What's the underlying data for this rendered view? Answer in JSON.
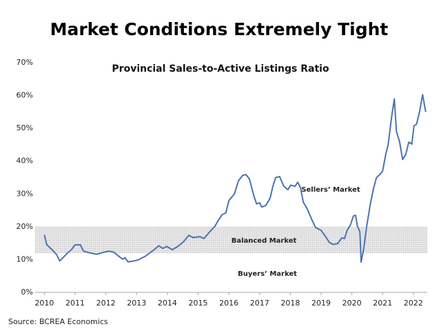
{
  "chart_data": {
    "type": "line",
    "title": "Market Conditions Extremely Tight",
    "subtitle": "Provincial Sales-to-Active Listings Ratio",
    "source": "Source: BCREA Economics",
    "x": [
      2010.0,
      2010.08,
      2010.25,
      2010.4,
      2010.5,
      2010.63,
      2010.75,
      2010.88,
      2011.0,
      2011.17,
      2011.27,
      2011.5,
      2011.7,
      2011.92,
      2012.1,
      2012.27,
      2012.42,
      2012.55,
      2012.62,
      2012.72,
      2012.92,
      2013.05,
      2013.28,
      2013.54,
      2013.72,
      2013.85,
      2013.98,
      2014.16,
      2014.34,
      2014.52,
      2014.7,
      2014.84,
      2015.06,
      2015.19,
      2015.37,
      2015.55,
      2015.68,
      2015.78,
      2015.9,
      2016.0,
      2016.18,
      2016.31,
      2016.45,
      2016.56,
      2016.67,
      2016.81,
      2016.9,
      2017.0,
      2017.07,
      2017.2,
      2017.34,
      2017.43,
      2017.52,
      2017.65,
      2017.79,
      2017.92,
      2018.01,
      2018.15,
      2018.24,
      2018.33,
      2018.42,
      2018.55,
      2018.69,
      2018.82,
      2019.0,
      2019.13,
      2019.27,
      2019.4,
      2019.54,
      2019.67,
      2019.76,
      2019.85,
      2019.95,
      2020.05,
      2020.12,
      2020.18,
      2020.26,
      2020.3,
      2020.38,
      2020.48,
      2020.6,
      2020.7,
      2020.8,
      2020.92,
      2021.0,
      2021.1,
      2021.18,
      2021.3,
      2021.38,
      2021.45,
      2021.55,
      2021.65,
      2021.75,
      2021.85,
      2021.95,
      2022.02,
      2022.1,
      2022.2,
      2022.3,
      2022.4
    ],
    "series": [
      {
        "name": "Sales-to-Active Listings Ratio",
        "color": "#4a72b0",
        "values": [
          17.5,
          14.5,
          13.0,
          11.5,
          9.6,
          10.8,
          12.0,
          13.0,
          14.5,
          14.5,
          12.6,
          12.0,
          11.6,
          12.2,
          12.6,
          12.2,
          11.0,
          10.1,
          10.6,
          9.3,
          9.6,
          9.9,
          11.0,
          12.8,
          14.2,
          13.4,
          14.0,
          13.0,
          14.0,
          15.4,
          17.4,
          16.7,
          17.0,
          16.4,
          18.4,
          20.2,
          22.3,
          23.7,
          24.2,
          28.0,
          30.0,
          34.0,
          35.7,
          35.9,
          34.5,
          29.5,
          27.0,
          27.3,
          26.0,
          26.5,
          28.7,
          32.3,
          35.0,
          35.3,
          32.3,
          31.3,
          32.7,
          32.3,
          33.6,
          31.9,
          27.5,
          25.4,
          22.3,
          19.8,
          18.9,
          17.2,
          15.2,
          14.6,
          14.9,
          16.6,
          16.4,
          19.0,
          20.5,
          23.3,
          23.5,
          20.2,
          18.5,
          9.2,
          13.0,
          20.0,
          27.0,
          31.5,
          35.0,
          36.0,
          37.0,
          42.0,
          45.0,
          54.0,
          59.0,
          49.0,
          46.0,
          40.5,
          42.0,
          45.8,
          45.2,
          50.8,
          51.2,
          55.0,
          60.3,
          55.0
        ]
      }
    ],
    "xlim": [
      2009.7,
      2022.45
    ],
    "xticks": [
      2010,
      2011,
      2012,
      2013,
      2014,
      2015,
      2016,
      2017,
      2018,
      2019,
      2020,
      2021,
      2022
    ],
    "ylim": [
      0,
      70
    ],
    "yticks": [
      {
        "value": 0,
        "label": "0%"
      },
      {
        "value": 10,
        "label": "10%"
      },
      {
        "value": 20,
        "label": "20%"
      },
      {
        "value": 30,
        "label": "30%"
      },
      {
        "value": 40,
        "label": "40%"
      },
      {
        "value": 50,
        "label": "50%"
      },
      {
        "value": 60,
        "label": "60%"
      },
      {
        "value": 70,
        "label": "70%"
      }
    ],
    "band": {
      "from": 12,
      "to": 20,
      "label": "Balanced Market",
      "color": "#d9d9d9"
    },
    "annotations": [
      "Sellers’ Market",
      "Buyers’ Market"
    ]
  }
}
